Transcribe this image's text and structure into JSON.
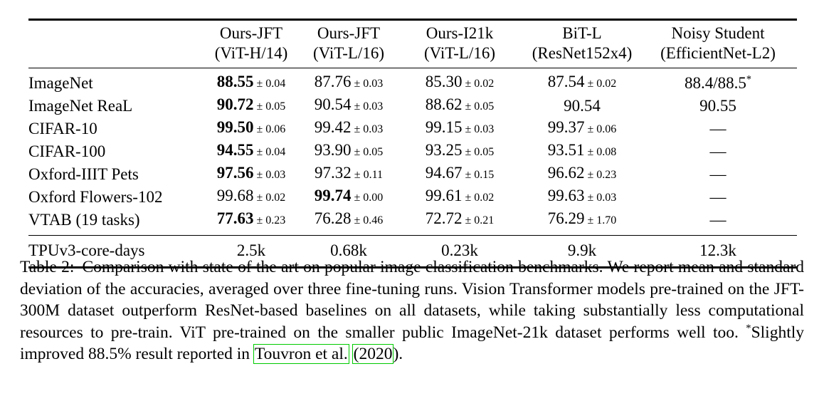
{
  "table": {
    "columns": [
      {
        "line1": "Ours-JFT",
        "line2": "(ViT-H/14)"
      },
      {
        "line1": "Ours-JFT",
        "line2": "(ViT-L/16)"
      },
      {
        "line1": "Ours-I21k",
        "line2": "(ViT-L/16)"
      },
      {
        "line1": "BiT-L",
        "line2": "(ResNet152x4)"
      },
      {
        "line1": "Noisy Student",
        "line2": "(EfficientNet-L2)"
      }
    ],
    "rows": [
      {
        "label": "ImageNet",
        "cells": [
          {
            "value": "88.55",
            "pm": "0.04",
            "bold": true
          },
          {
            "value": "87.76",
            "pm": "0.03"
          },
          {
            "value": "85.30",
            "pm": "0.02"
          },
          {
            "value": "87.54",
            "pm": "0.02"
          },
          {
            "value": "88.4/88.5",
            "sup": "*"
          }
        ]
      },
      {
        "label": "ImageNet ReaL",
        "cells": [
          {
            "value": "90.72",
            "pm": "0.05",
            "bold": true
          },
          {
            "value": "90.54",
            "pm": "0.03"
          },
          {
            "value": "88.62",
            "pm": "0.05"
          },
          {
            "value": "90.54"
          },
          {
            "value": "90.55"
          }
        ]
      },
      {
        "label": "CIFAR-10",
        "cells": [
          {
            "value": "99.50",
            "pm": "0.06",
            "bold": true
          },
          {
            "value": "99.42",
            "pm": "0.03"
          },
          {
            "value": "99.15",
            "pm": "0.03"
          },
          {
            "value": "99.37",
            "pm": "0.06"
          },
          {
            "value": "—"
          }
        ]
      },
      {
        "label": "CIFAR-100",
        "cells": [
          {
            "value": "94.55",
            "pm": "0.04",
            "bold": true
          },
          {
            "value": "93.90",
            "pm": "0.05"
          },
          {
            "value": "93.25",
            "pm": "0.05"
          },
          {
            "value": "93.51",
            "pm": "0.08"
          },
          {
            "value": "—"
          }
        ]
      },
      {
        "label": "Oxford-IIIT Pets",
        "cells": [
          {
            "value": "97.56",
            "pm": "0.03",
            "bold": true
          },
          {
            "value": "97.32",
            "pm": "0.11"
          },
          {
            "value": "94.67",
            "pm": "0.15"
          },
          {
            "value": "96.62",
            "pm": "0.23"
          },
          {
            "value": "—"
          }
        ]
      },
      {
        "label": "Oxford Flowers-102",
        "cells": [
          {
            "value": "99.68",
            "pm": "0.02"
          },
          {
            "value": "99.74",
            "pm": "0.00",
            "bold": true
          },
          {
            "value": "99.61",
            "pm": "0.02"
          },
          {
            "value": "99.63",
            "pm": "0.03"
          },
          {
            "value": "—"
          }
        ]
      },
      {
        "label": "VTAB (19 tasks)",
        "cells": [
          {
            "value": "77.63",
            "pm": "0.23",
            "bold": true
          },
          {
            "value": "76.28",
            "pm": "0.46"
          },
          {
            "value": "72.72",
            "pm": "0.21"
          },
          {
            "value": "76.29",
            "pm": "1.70"
          },
          {
            "value": "—"
          }
        ]
      }
    ],
    "footer": {
      "label": "TPUv3-core-days",
      "values": [
        "2.5k",
        "0.68k",
        "0.23k",
        "9.9k",
        "12.3k"
      ]
    }
  },
  "caption": {
    "label": "Table 2:",
    "parts": [
      {
        "text": "Comparison with state of the art on popular image classification benchmarks. We report mean and standard deviation of the accuracies, averaged over three fine-tuning runs. Vision Transformer models pre-trained on the JFT-300M dataset outperform ResNet-based baselines on all datasets, while taking substantially less computational resources to pre-train. ViT pre-trained on the smaller public ImageNet-21k dataset performs well too. "
      },
      {
        "text": "*",
        "sup": true
      },
      {
        "text": "Slightly improved 88.5% result reported in "
      },
      {
        "text": "Touvron et al.",
        "box": true,
        "name": "citation-touvron-link"
      },
      {
        "text": " "
      },
      {
        "text": "(2020",
        "box": true,
        "name": "citation-year-link"
      },
      {
        "text": ")."
      }
    ],
    "citation_border_color": "#00cc00"
  }
}
